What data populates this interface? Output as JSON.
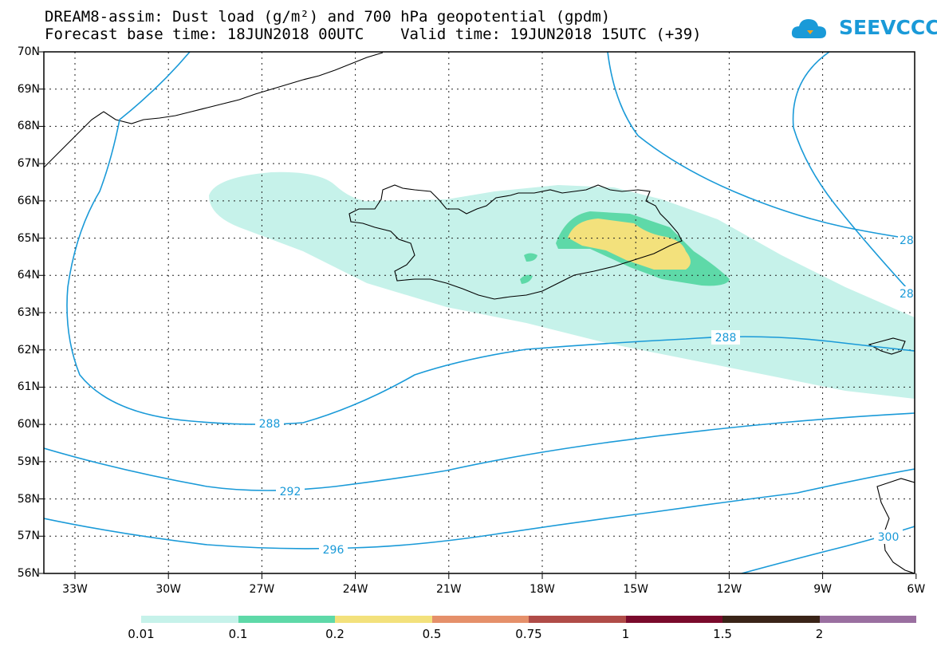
{
  "title_line1": "DREAM8-assim: Dust load (g/m²) and 700 hPa geopotential (gpdm)",
  "title_line2": "Forecast base time: 18JUN2018 00UTC    Valid time: 19JUN2018 15UTC (+39)",
  "logo_text": "SEEVCCC",
  "lat_labels": [
    "70N",
    "69N",
    "68N",
    "67N",
    "66N",
    "65N",
    "64N",
    "63N",
    "62N",
    "61N",
    "60N",
    "59N",
    "58N",
    "57N",
    "56N"
  ],
  "lon_labels": [
    "33W",
    "30W",
    "27W",
    "24W",
    "21W",
    "18W",
    "15W",
    "12W",
    "9W",
    "6W"
  ],
  "contour_labels": [
    "288",
    "288",
    "292",
    "296",
    "300",
    "28",
    "28"
  ],
  "colorbar": {
    "colors": [
      "#c6f2ea",
      "#5ed9a8",
      "#f3e17c",
      "#e5906a",
      "#b04c48",
      "#7a0a2c",
      "#3a2418",
      "#9a6fa0"
    ],
    "labels": [
      "0.01",
      "0.1",
      "0.2",
      "0.5",
      "0.75",
      "1",
      "1.5",
      "2"
    ]
  },
  "colors": {
    "contour": "#1a9ad8",
    "dust_low": "#c6f2ea",
    "dust_mid": "#5ed9a8",
    "dust_high": "#f3e17c"
  }
}
